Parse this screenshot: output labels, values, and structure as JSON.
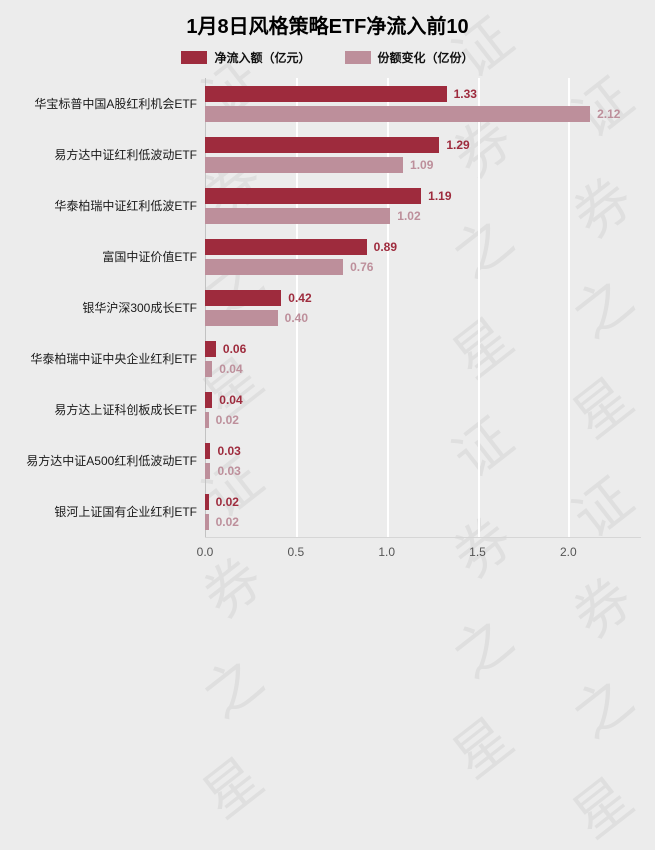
{
  "title": "1月8日风格策略ETF净流入前10",
  "watermark": "证券之星",
  "chart_data": {
    "type": "bar",
    "orientation": "horizontal",
    "title": "1月8日风格策略ETF净流入前10",
    "categories": [
      "华宝标普中国A股红利机会ETF",
      "易方达中证红利低波动ETF",
      "华泰柏瑞中证红利低波ETF",
      "富国中证价值ETF",
      "银华沪深300成长ETF",
      "华泰柏瑞中证中央企业红利ETF",
      "易方达上证科创板成长ETF",
      "易方达中证A500红利低波动ETF",
      "银河上证国有企业红利ETF"
    ],
    "series": [
      {
        "name": "净流入额（亿元）",
        "color": "#9e2b3d",
        "values": [
          1.33,
          1.29,
          1.19,
          0.89,
          0.42,
          0.06,
          0.04,
          0.03,
          0.02
        ]
      },
      {
        "name": "份额变化（亿份）",
        "color": "#bd8f9b",
        "values": [
          2.12,
          1.09,
          1.02,
          0.76,
          0.4,
          0.04,
          0.02,
          0.03,
          0.02
        ]
      }
    ],
    "xlim": [
      0,
      2.4
    ],
    "xticks": [
      "0.0",
      "0.5",
      "1.0",
      "1.5",
      "2.0"
    ],
    "xtick_values": [
      0,
      0.5,
      1.0,
      1.5,
      2.0
    ],
    "legend_position": "top",
    "grid": true,
    "background": "#ececec"
  }
}
